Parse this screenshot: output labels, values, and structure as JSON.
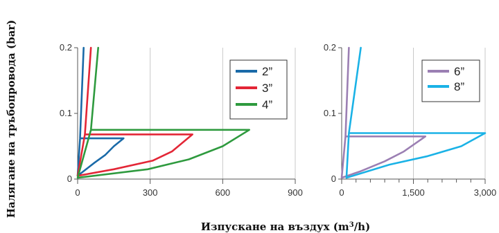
{
  "figure": {
    "ylabel": "Налягане на тръбопровода (bar)",
    "xlabel_main": "Изпускане на въздух (m",
    "xlabel_sup": "3",
    "xlabel_end": "/h)"
  },
  "chart_data": [
    {
      "type": "line",
      "xlim": [
        0,
        900
      ],
      "ylim": [
        0,
        0.2
      ],
      "x_ticks": [
        0,
        300,
        600,
        900
      ],
      "x_tick_labels": [
        "0",
        "300",
        "600",
        "900"
      ],
      "y_ticks": [
        0,
        0.1,
        0.2
      ],
      "y_tick_labels": [
        "0",
        "0.1",
        "0.2"
      ],
      "grid": "vertical",
      "legend_position": "top-right",
      "colors": {
        "2\"": "#1a6aa8",
        "3\"": "#e32636",
        "4\"": "#2e9a3e"
      },
      "series": [
        {
          "name": "2”",
          "color": "#1a6aa8",
          "x": [
            10,
            190,
            150,
            115,
            70,
            0,
            10,
            25
          ],
          "y": [
            0.062,
            0.062,
            0.05,
            0.037,
            0.025,
            0.005,
            0.062,
            0.2
          ]
        },
        {
          "name": "3”",
          "color": "#e32636",
          "x": [
            30,
            475,
            390,
            310,
            150,
            0,
            30,
            55
          ],
          "y": [
            0.068,
            0.068,
            0.042,
            0.028,
            0.015,
            0.005,
            0.068,
            0.2
          ]
        },
        {
          "name": "4”",
          "color": "#2e9a3e",
          "x": [
            55,
            710,
            600,
            460,
            290,
            0,
            55,
            85
          ],
          "y": [
            0.075,
            0.075,
            0.05,
            0.03,
            0.015,
            0.002,
            0.075,
            0.2
          ]
        }
      ]
    },
    {
      "type": "line",
      "xlim": [
        0,
        3000
      ],
      "ylim": [
        0,
        0.2
      ],
      "x_ticks": [
        0,
        1500,
        3000
      ],
      "x_tick_labels": [
        "0",
        "1,500",
        "3,000"
      ],
      "x_minor_ticks": [
        300,
        600,
        900,
        1200,
        1800,
        2100,
        2400,
        2700
      ],
      "y_ticks": [
        0,
        0.1,
        0.2
      ],
      "y_tick_labels": [
        "0",
        "0.1",
        "0.2"
      ],
      "grid": "vertical",
      "legend_position": "top-right",
      "colors": {
        "6\"": "#9b7fb3",
        "8\"": "#1ab2e6"
      },
      "series": [
        {
          "name": "6”",
          "color": "#9b7fb3",
          "x": [
            80,
            1750,
            1300,
            900,
            400,
            0,
            80,
            150
          ],
          "y": [
            0.065,
            0.065,
            0.042,
            0.027,
            0.012,
            0.002,
            0.065,
            0.2
          ]
        },
        {
          "name": "8”",
          "color": "#1ab2e6",
          "x": [
            150,
            3000,
            2500,
            1800,
            1000,
            100,
            150,
            400
          ],
          "y": [
            0.07,
            0.07,
            0.05,
            0.035,
            0.022,
            0.002,
            0.07,
            0.2
          ]
        }
      ]
    }
  ]
}
